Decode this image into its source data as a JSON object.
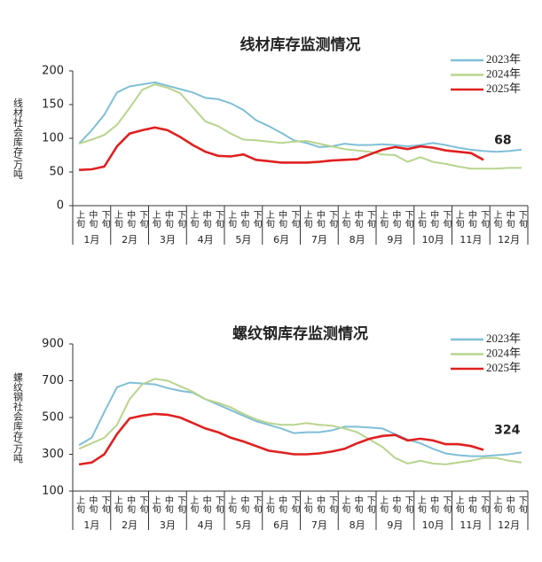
{
  "chart_data": [
    {
      "type": "line",
      "title": "线材库存监测情况",
      "ylabel": "线材社会库存/万吨",
      "categories": [
        "上旬",
        "中旬",
        "下旬",
        "上旬",
        "中旬",
        "下旬",
        "上旬",
        "中旬",
        "下旬",
        "上旬",
        "中旬",
        "下旬",
        "上旬",
        "中旬",
        "下旬",
        "上旬",
        "中旬",
        "下旬",
        "上旬",
        "中旬",
        "下旬",
        "上旬",
        "中旬",
        "下旬",
        "上旬",
        "中旬",
        "下旬",
        "上旬",
        "中旬",
        "下旬",
        "上旬",
        "中旬",
        "下旬",
        "上旬",
        "中旬",
        "下旬"
      ],
      "groups": [
        "1月",
        "2月",
        "3月",
        "4月",
        "5月",
        "6月",
        "7月",
        "8月",
        "9月",
        "10月",
        "11月",
        "12月"
      ],
      "ylim": [
        0,
        200
      ],
      "yticks": [
        0,
        50,
        100,
        150,
        200
      ],
      "legend": "upper right",
      "annotation": "68",
      "series": [
        {
          "name": "2023年",
          "color": "#7fbfd6",
          "values": [
            92,
            112,
            135,
            168,
            177,
            180,
            183,
            178,
            173,
            168,
            160,
            158,
            152,
            142,
            127,
            118,
            108,
            97,
            93,
            87,
            88,
            92,
            90,
            90,
            91,
            90,
            88,
            90,
            93,
            90,
            86,
            83,
            81,
            80,
            81,
            83
          ]
        },
        {
          "name": "2024年",
          "color": "#b9d48e",
          "values": [
            92,
            98,
            105,
            120,
            145,
            172,
            180,
            175,
            167,
            146,
            125,
            118,
            107,
            98,
            97,
            95,
            93,
            95,
            96,
            92,
            88,
            84,
            82,
            80,
            76,
            75,
            65,
            72,
            65,
            62,
            58,
            55,
            55,
            55,
            56,
            56
          ]
        },
        {
          "name": "2025年",
          "color": "#e02020",
          "values": [
            53,
            54,
            58,
            88,
            107,
            112,
            116,
            112,
            102,
            90,
            80,
            74,
            73,
            76,
            68,
            66,
            64,
            64,
            64,
            65,
            67,
            68,
            69,
            76,
            83,
            87,
            84,
            88,
            86,
            82,
            80,
            78,
            68,
            null,
            null,
            null
          ]
        }
      ]
    },
    {
      "type": "line",
      "title": "螺纹钢库存监测情况",
      "ylabel": "螺纹钢社会库存/万吨",
      "categories": [
        "上旬",
        "中旬",
        "下旬",
        "上旬",
        "中旬",
        "下旬",
        "上旬",
        "中旬",
        "下旬",
        "上旬",
        "中旬",
        "下旬",
        "上旬",
        "中旬",
        "下旬",
        "上旬",
        "中旬",
        "下旬",
        "上旬",
        "中旬",
        "下旬",
        "上旬",
        "中旬",
        "下旬",
        "上旬",
        "中旬",
        "下旬",
        "上旬",
        "中旬",
        "下旬",
        "上旬",
        "中旬",
        "下旬",
        "上旬",
        "中旬",
        "下旬"
      ],
      "groups": [
        "1月",
        "2月",
        "3月",
        "4月",
        "5月",
        "6月",
        "7月",
        "8月",
        "9月",
        "10月",
        "11月",
        "12月"
      ],
      "ylim": [
        100,
        900
      ],
      "yticks": [
        100,
        300,
        500,
        700,
        900
      ],
      "legend": "upper right",
      "annotation": "324",
      "series": [
        {
          "name": "2023年",
          "color": "#7fbfd6",
          "values": [
            350,
            390,
            530,
            665,
            690,
            685,
            680,
            660,
            645,
            635,
            600,
            570,
            540,
            510,
            480,
            460,
            440,
            415,
            420,
            420,
            430,
            450,
            450,
            445,
            440,
            410,
            380,
            360,
            330,
            305,
            295,
            290,
            290,
            295,
            300,
            310
          ]
        },
        {
          "name": "2024年",
          "color": "#b9d48e",
          "values": [
            330,
            360,
            390,
            460,
            600,
            680,
            710,
            700,
            670,
            640,
            600,
            580,
            555,
            520,
            490,
            470,
            460,
            460,
            470,
            460,
            455,
            440,
            420,
            380,
            340,
            280,
            250,
            265,
            250,
            245,
            255,
            265,
            280,
            280,
            265,
            255
          ]
        },
        {
          "name": "2025年",
          "color": "#e02020",
          "values": [
            245,
            255,
            300,
            410,
            495,
            510,
            520,
            515,
            500,
            470,
            440,
            420,
            390,
            370,
            345,
            320,
            310,
            300,
            300,
            305,
            315,
            330,
            360,
            385,
            400,
            405,
            375,
            385,
            375,
            355,
            355,
            345,
            324,
            null,
            null,
            null
          ]
        }
      ]
    }
  ]
}
